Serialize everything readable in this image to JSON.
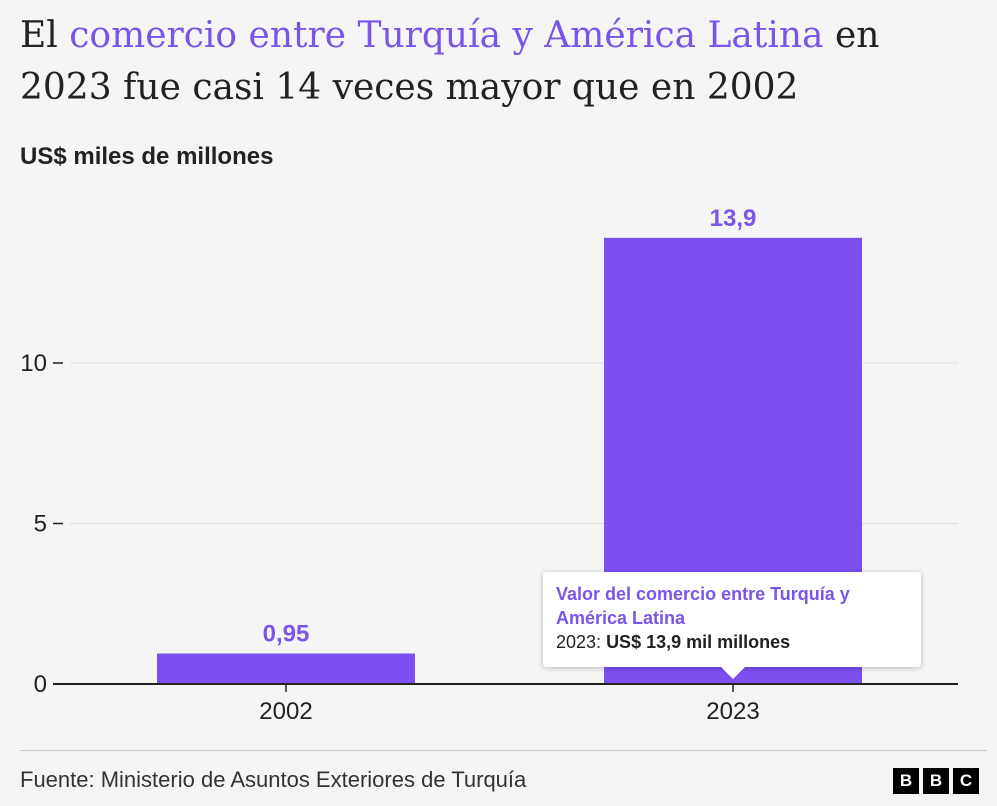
{
  "title": {
    "part1": "El ",
    "highlight": "comercio entre Turquía y América Latina",
    "part2": " en 2023 fue casi 14 veces mayor que en 2002"
  },
  "unit_label": "US$ miles de millones",
  "colors": {
    "accent": "#7b54e8",
    "bar": "#7b4ff0",
    "text": "#222222"
  },
  "chart_data": {
    "type": "bar",
    "title": "El comercio entre Turquía y América Latina en 2023 fue casi 14 veces mayor que en 2002",
    "ylabel": "US$ miles de millones",
    "xlabel": "",
    "categories": [
      "2002",
      "2023"
    ],
    "values": [
      0.95,
      13.9
    ],
    "value_labels": [
      "0,95",
      "13,9"
    ],
    "yticks": [
      0,
      5,
      10
    ],
    "ytick_labels": [
      "0",
      "5",
      "10"
    ],
    "ylim": [
      0,
      14.6
    ],
    "grid": true
  },
  "tooltip": {
    "title": "Valor del comercio entre Turquía y América Latina",
    "year": "2023:",
    "value": "US$ 13,9 mil millones"
  },
  "source": "Fuente: Ministerio de Asuntos Exteriores de Turquía",
  "logo": [
    "B",
    "B",
    "C"
  ]
}
